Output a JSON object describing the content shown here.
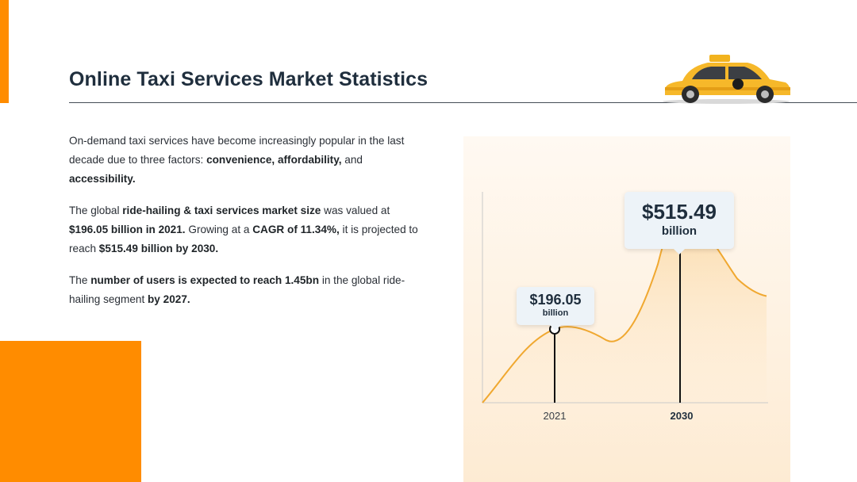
{
  "slide": {
    "title": "Online Taxi Services Market Statistics",
    "accent_color": "#ff8c00",
    "line_color": "#f0a830",
    "image_icon": "taxi-car-icon"
  },
  "paragraphs": {
    "p1": {
      "a": "On-demand taxi services have become increasingly popular in the last decade due to three factors: ",
      "b": "convenience, affordability,",
      "c": " and ",
      "d": "accessibility."
    },
    "p2": {
      "a": "The global ",
      "b": "ride-hailing & taxi services market size",
      "c": " was valued at ",
      "d": "$196.05 billion in 2021.",
      "e": " Growing at a ",
      "f": "CAGR of 11.34%,",
      "g": " it is projected to reach ",
      "h": "$515.49 billion by 2030."
    },
    "p3": {
      "a": "The ",
      "b": "number of users is expected to reach 1.45bn",
      "c": " in the global ride-hailing segment ",
      "d": "by 2027."
    }
  },
  "chart_data": {
    "type": "line",
    "title": "",
    "xlabel": "",
    "ylabel": "",
    "categories": [
      "2021",
      "2030"
    ],
    "series": [
      {
        "values": [
          196.05,
          515.49
        ],
        "labels": [
          {
            "amount": "$196.05",
            "unit": "billion"
          },
          {
            "amount": "$515.49",
            "unit": "billion"
          }
        ]
      }
    ],
    "ylim": [
      0,
      600
    ],
    "grid": false,
    "legend": "none"
  }
}
